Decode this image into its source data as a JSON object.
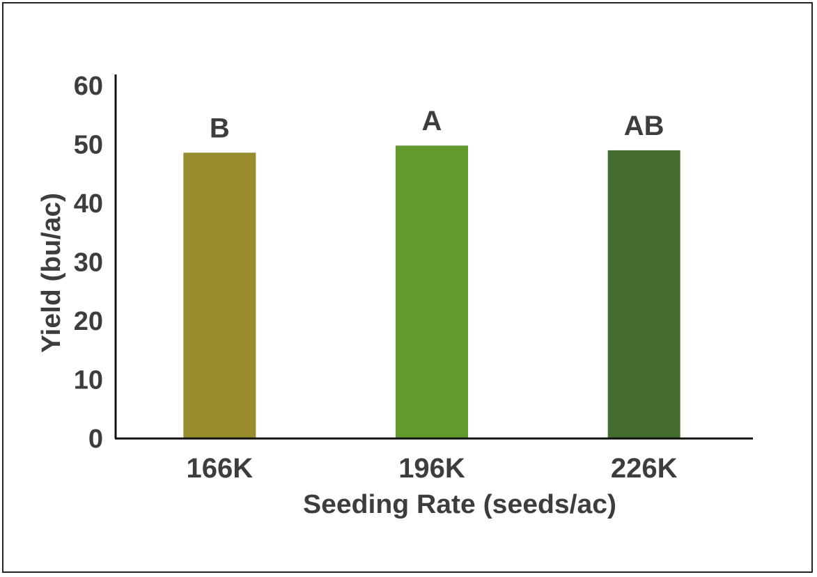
{
  "chart_data": {
    "type": "bar",
    "title": "",
    "categories": [
      "166K",
      "196K",
      "226K"
    ],
    "values": [
      48.6,
      49.8,
      49.0
    ],
    "significance_labels": [
      "B",
      "A",
      "AB"
    ],
    "colors": [
      "#988c2e",
      "#639a2e",
      "#436c2e"
    ],
    "xlabel": "Seeding Rate (seeds/ac)",
    "ylabel": "Yield (bu/ac)",
    "ylim": [
      0,
      60
    ],
    "yticks": [
      "0",
      "10",
      "20",
      "30",
      "40",
      "50",
      "60"
    ],
    "grid": false
  }
}
